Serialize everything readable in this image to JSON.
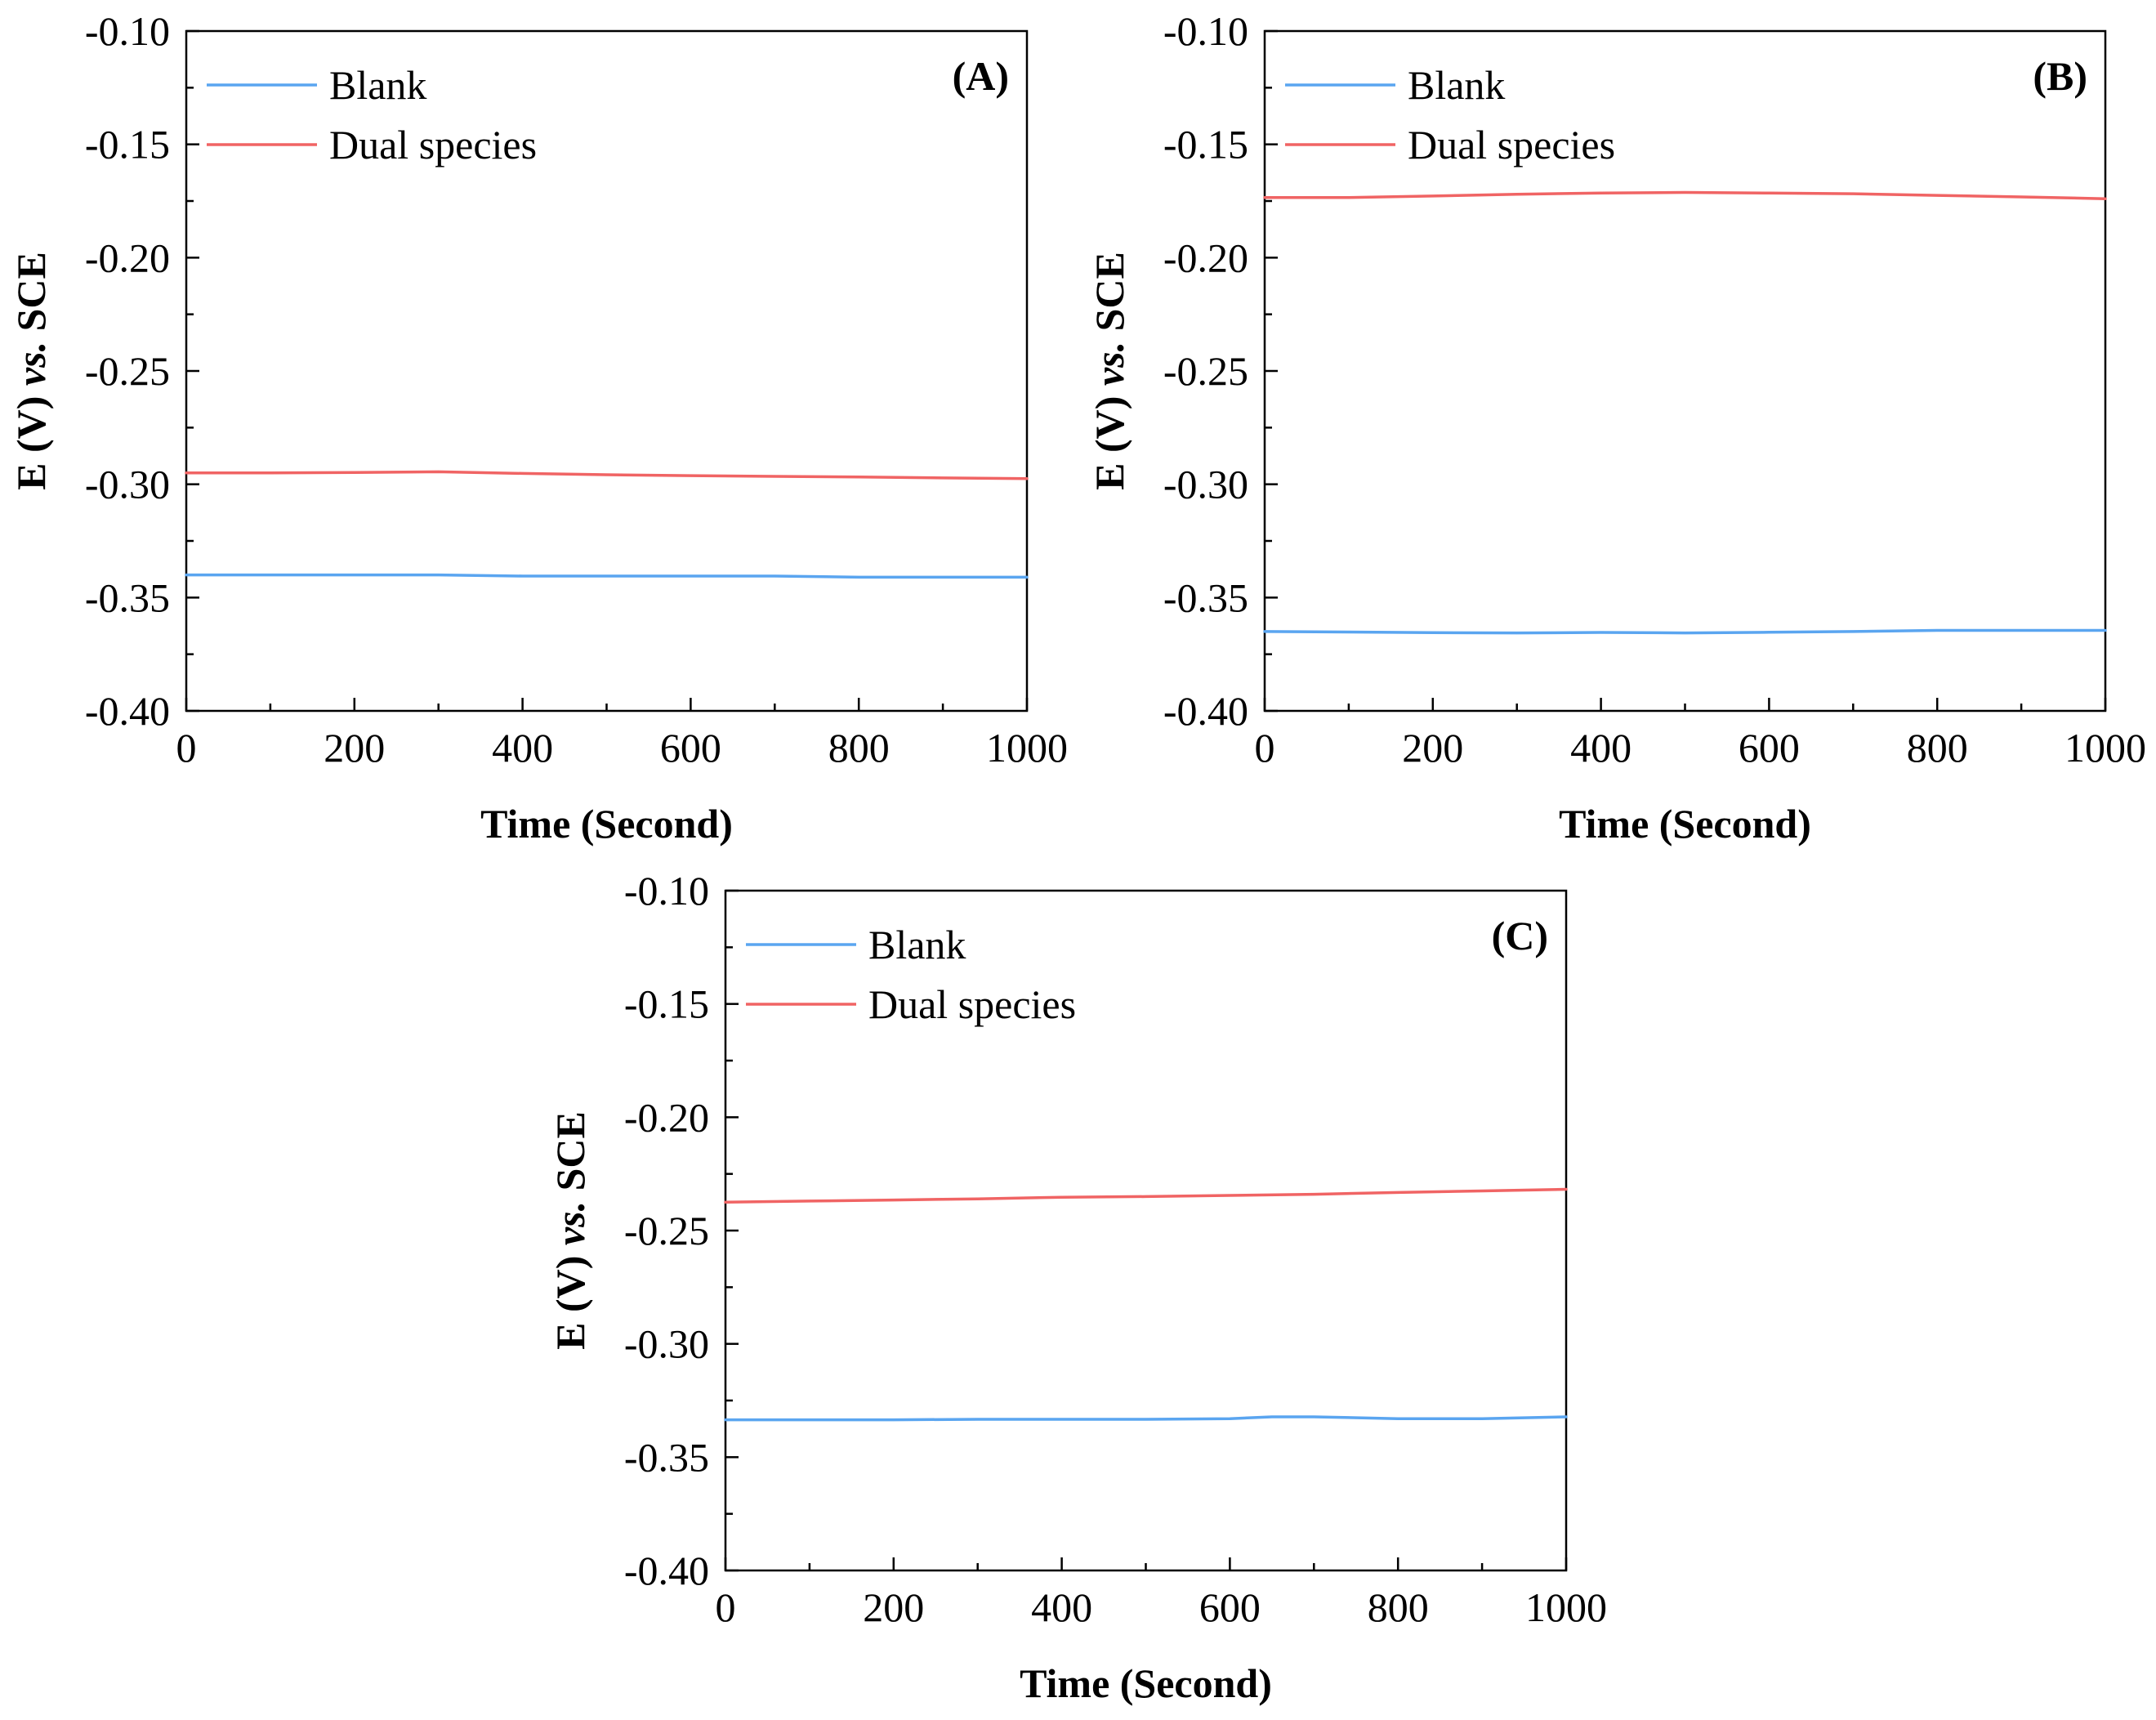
{
  "chart_data": [
    {
      "type": "line",
      "panel_label": "(A)",
      "xlabel": "Time (Second)",
      "ylabel": {
        "prefix": "E (V) ",
        "italic": "vs.",
        "suffix": " SCE"
      },
      "xlim": [
        0,
        1000
      ],
      "ylim": [
        -0.4,
        -0.1
      ],
      "xticks": [
        0,
        200,
        400,
        600,
        800,
        1000
      ],
      "xtick_labels": [
        "0",
        "200",
        "400",
        "600",
        "800",
        "1000"
      ],
      "yticks": [
        -0.1,
        -0.15,
        -0.2,
        -0.25,
        -0.3,
        -0.35,
        -0.4
      ],
      "ytick_labels": [
        "-0.10",
        "-0.15",
        "-0.20",
        "-0.25",
        "-0.30",
        "-0.35",
        "-0.40"
      ],
      "legend_position": "top-left",
      "series": [
        {
          "name": "Blank",
          "color": "#5aa5f0",
          "x": [
            0,
            100,
            200,
            300,
            400,
            500,
            600,
            700,
            800,
            900,
            1000
          ],
          "y": [
            -0.34,
            -0.34,
            -0.34,
            -0.34,
            -0.3405,
            -0.3405,
            -0.3405,
            -0.3405,
            -0.341,
            -0.341,
            -0.341
          ]
        },
        {
          "name": "Dual species",
          "color": "#f06464",
          "x": [
            0,
            100,
            200,
            300,
            400,
            500,
            600,
            700,
            800,
            900,
            1000
          ],
          "y": [
            -0.295,
            -0.295,
            -0.2948,
            -0.2945,
            -0.2952,
            -0.2958,
            -0.2962,
            -0.2965,
            -0.2968,
            -0.2972,
            -0.2975
          ]
        }
      ]
    },
    {
      "type": "line",
      "panel_label": "(B)",
      "xlabel": "Time (Second)",
      "ylabel": {
        "prefix": "E (V) ",
        "italic": "vs.",
        "suffix": " SCE"
      },
      "xlim": [
        0,
        1000
      ],
      "ylim": [
        -0.4,
        -0.1
      ],
      "xticks": [
        0,
        200,
        400,
        600,
        800,
        1000
      ],
      "xtick_labels": [
        "0",
        "200",
        "400",
        "600",
        "800",
        "1000"
      ],
      "yticks": [
        -0.1,
        -0.15,
        -0.2,
        -0.25,
        -0.3,
        -0.35,
        -0.4
      ],
      "ytick_labels": [
        "-0.10",
        "-0.15",
        "-0.20",
        "-0.25",
        "-0.30",
        "-0.35",
        "-0.40"
      ],
      "legend_position": "top-left",
      "series": [
        {
          "name": "Blank",
          "color": "#5aa5f0",
          "x": [
            0,
            100,
            200,
            300,
            400,
            500,
            600,
            700,
            800,
            900,
            1000
          ],
          "y": [
            -0.365,
            -0.3652,
            -0.3655,
            -0.3656,
            -0.3654,
            -0.3656,
            -0.3653,
            -0.365,
            -0.3645,
            -0.3645,
            -0.3645
          ]
        },
        {
          "name": "Dual species",
          "color": "#f06464",
          "x": [
            0,
            100,
            200,
            300,
            400,
            500,
            600,
            700,
            800,
            900,
            1000
          ],
          "y": [
            -0.1735,
            -0.1735,
            -0.1728,
            -0.172,
            -0.1715,
            -0.1712,
            -0.1715,
            -0.1718,
            -0.1725,
            -0.1732,
            -0.174
          ]
        }
      ]
    },
    {
      "type": "line",
      "panel_label": "(C)",
      "xlabel": "Time (Second)",
      "ylabel": {
        "prefix": "E (V) ",
        "italic": "vs.",
        "suffix": " SCE"
      },
      "xlim": [
        0,
        1000
      ],
      "ylim": [
        -0.4,
        -0.1
      ],
      "xticks": [
        0,
        200,
        400,
        600,
        800,
        1000
      ],
      "xtick_labels": [
        "0",
        "200",
        "400",
        "600",
        "800",
        "1000"
      ],
      "yticks": [
        -0.1,
        -0.15,
        -0.2,
        -0.25,
        -0.3,
        -0.35,
        -0.4
      ],
      "ytick_labels": [
        "-0.10",
        "-0.15",
        "-0.20",
        "-0.25",
        "-0.30",
        "-0.35",
        "-0.40"
      ],
      "legend_position": "top-left",
      "series": [
        {
          "name": "Blank",
          "color": "#5aa5f0",
          "x": [
            0,
            100,
            200,
            300,
            400,
            500,
            600,
            650,
            700,
            800,
            900,
            1000
          ],
          "y": [
            -0.3335,
            -0.3335,
            -0.3335,
            -0.3333,
            -0.3333,
            -0.3333,
            -0.333,
            -0.3322,
            -0.3322,
            -0.333,
            -0.333,
            -0.3322
          ]
        },
        {
          "name": "Dual species",
          "color": "#f06464",
          "x": [
            0,
            100,
            200,
            300,
            400,
            500,
            600,
            700,
            800,
            900,
            1000
          ],
          "y": [
            -0.2375,
            -0.237,
            -0.2365,
            -0.236,
            -0.2353,
            -0.235,
            -0.2345,
            -0.234,
            -0.2332,
            -0.2325,
            -0.2318
          ]
        }
      ]
    }
  ]
}
